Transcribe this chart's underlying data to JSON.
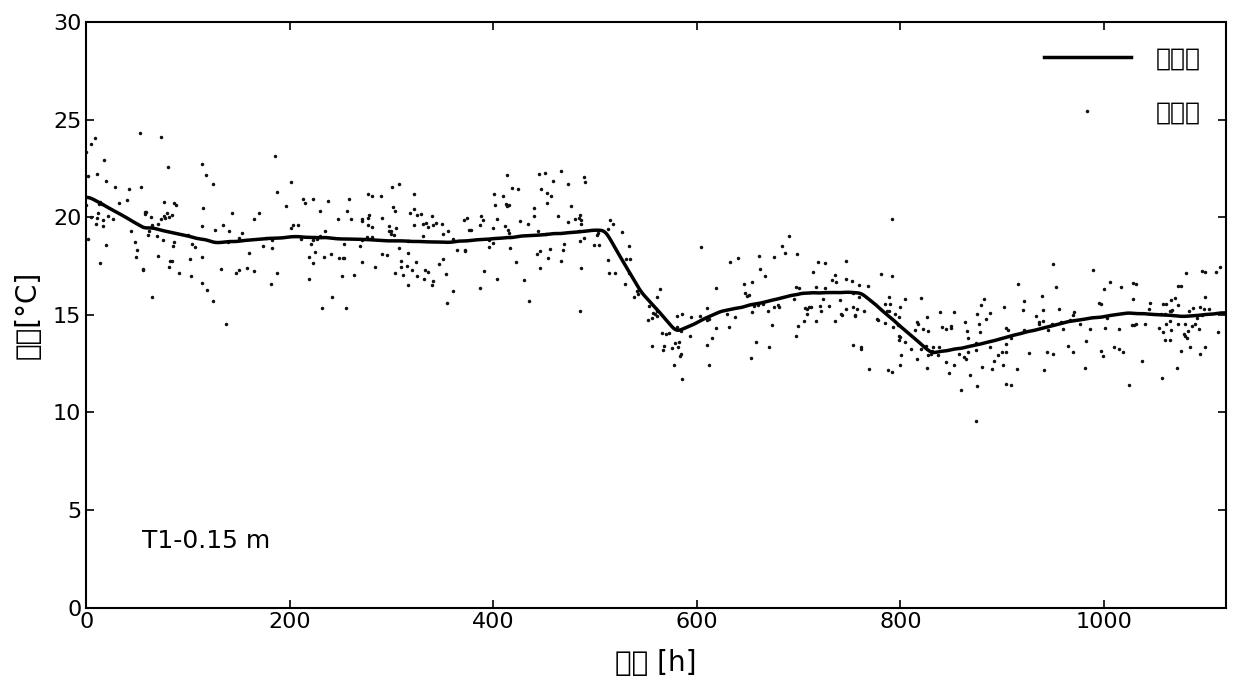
{
  "title": "",
  "xlabel": "时间 [h]",
  "ylabel": "温度[°C]",
  "annotation": "T1-0.15 m",
  "xlim": [
    0,
    1120
  ],
  "ylim": [
    0,
    30
  ],
  "xticks": [
    0,
    200,
    400,
    600,
    800,
    1000
  ],
  "yticks": [
    0,
    5,
    10,
    15,
    20,
    25,
    30
  ],
  "legend_simulated": "模拟值",
  "legend_measured": "实测值",
  "background_color": "#ffffff",
  "line_color": "#000000",
  "dot_color": "#111111",
  "figsize": [
    12.4,
    6.91
  ],
  "dpi": 100
}
